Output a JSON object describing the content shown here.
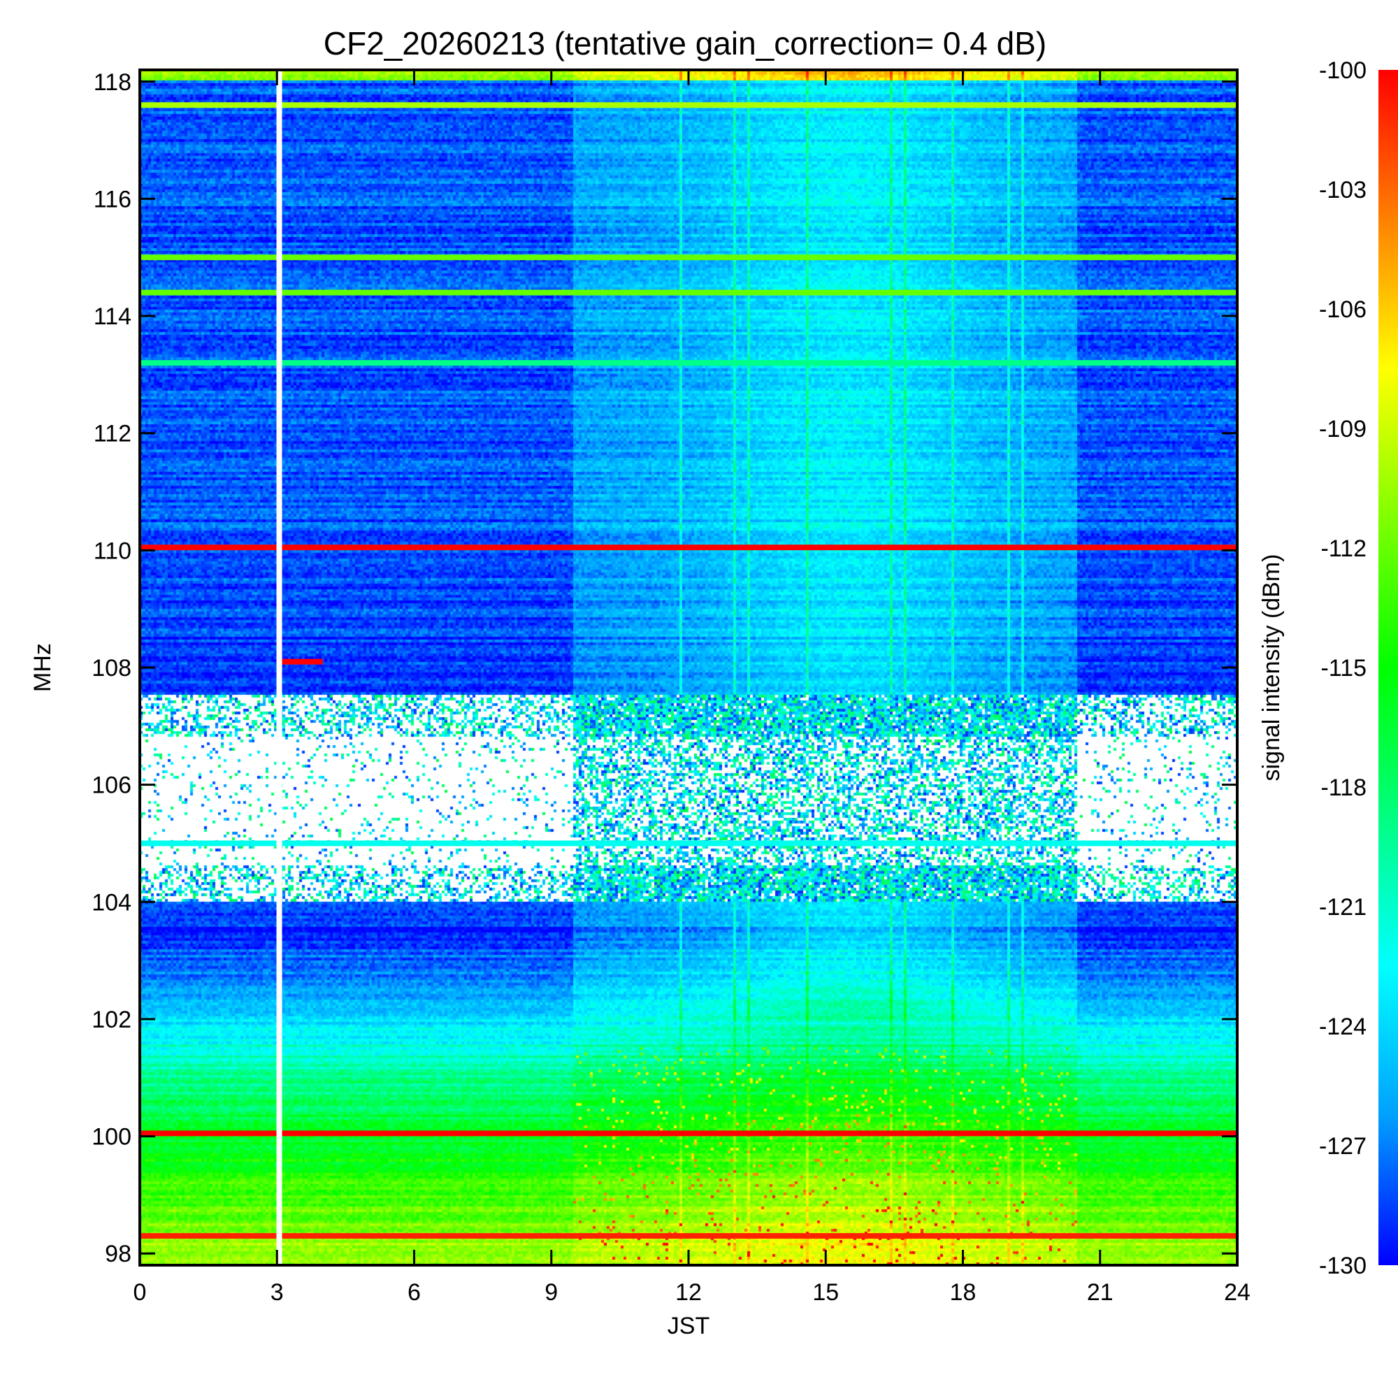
{
  "chart_data": {
    "type": "heatmap",
    "title": "CF2_20260213 (tentative gain_correction=  0.4 dB)",
    "xlabel": "JST",
    "ylabel": "MHz",
    "colorbar_label": "signal intensity (dBm)",
    "xlim": [
      0,
      24
    ],
    "ylim": [
      97.8,
      118.2
    ],
    "x_ticks": [
      0,
      3,
      6,
      9,
      12,
      15,
      18,
      21,
      24
    ],
    "x_tick_labels": [
      "0",
      "3",
      "6",
      "9",
      "12",
      "15",
      "18",
      "21",
      "24"
    ],
    "y_ticks": [
      98,
      100,
      102,
      104,
      106,
      108,
      110,
      112,
      114,
      116,
      118
    ],
    "y_tick_labels": [
      "98",
      "100",
      "102",
      "104",
      "106",
      "108",
      "110",
      "112",
      "114",
      "116",
      "118"
    ],
    "color_range": [
      -130,
      -100
    ],
    "colorbar_ticks": [
      -100,
      -103,
      -106,
      -109,
      -112,
      -115,
      -118,
      -121,
      -124,
      -127,
      -130
    ],
    "colorbar_tick_labels": [
      "-100",
      "-103",
      "-106",
      "-109",
      "-112",
      "-115",
      "-118",
      "-121",
      "-124",
      "-127",
      "-130"
    ],
    "colormap": [
      "#0000ff",
      "#00a0ff",
      "#00ffff",
      "#00ff80",
      "#00ff00",
      "#80ff00",
      "#ffff00",
      "#ff8000",
      "#ff0000"
    ],
    "data_gap_jst": 3.05,
    "strong_lines": [
      {
        "freq_mhz": 117.6,
        "level_dbm": -110,
        "x_range": [
          0,
          24
        ]
      },
      {
        "freq_mhz": 115.0,
        "level_dbm": -112,
        "x_range": [
          0,
          24
        ]
      },
      {
        "freq_mhz": 114.4,
        "level_dbm": -112,
        "x_range": [
          0,
          24
        ]
      },
      {
        "freq_mhz": 113.2,
        "level_dbm": -119,
        "x_range": [
          0,
          24
        ]
      },
      {
        "freq_mhz": 110.05,
        "level_dbm": -100,
        "x_range": [
          0,
          24
        ]
      },
      {
        "freq_mhz": 108.1,
        "level_dbm": -100,
        "x_range": [
          3.0,
          4.0
        ]
      },
      {
        "freq_mhz": 105.0,
        "level_dbm": -122,
        "x_range": [
          0,
          24
        ]
      },
      {
        "freq_mhz": 100.05,
        "level_dbm": -100,
        "x_range": [
          0,
          24
        ]
      },
      {
        "freq_mhz": 98.3,
        "level_dbm": -101,
        "x_range": [
          0,
          24
        ]
      }
    ],
    "background_profile": [
      {
        "freq_mhz": 118.0,
        "level_dbm": -128
      },
      {
        "freq_mhz": 110.0,
        "level_dbm": -128
      },
      {
        "freq_mhz": 108.0,
        "level_dbm": -129
      },
      {
        "freq_mhz": 103.5,
        "level_dbm": -129
      },
      {
        "freq_mhz": 102.5,
        "level_dbm": -126
      },
      {
        "freq_mhz": 102.0,
        "level_dbm": -124
      },
      {
        "freq_mhz": 101.0,
        "level_dbm": -119
      },
      {
        "freq_mhz": 100.0,
        "level_dbm": -116
      },
      {
        "freq_mhz": 99.0,
        "level_dbm": -113
      },
      {
        "freq_mhz": 97.8,
        "level_dbm": -110
      }
    ],
    "sparse_band_mhz": [
      104.0,
      107.5
    ]
  }
}
